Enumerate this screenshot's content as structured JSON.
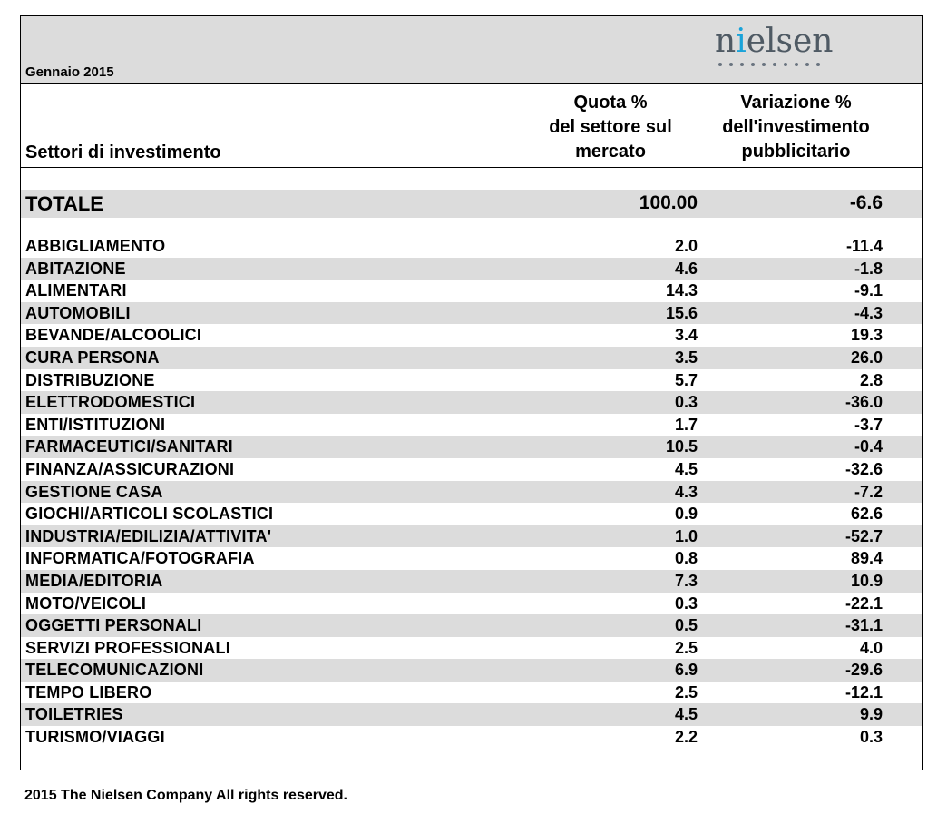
{
  "header": {
    "period": "Gennaio 2015",
    "logo_text_prefix": "n",
    "logo_text_i": "i",
    "logo_text_suffix": "elsen",
    "col_sector": "Settori di investimento",
    "col_share": [
      "Quota %",
      "del settore sul",
      "mercato"
    ],
    "col_var": [
      "Variazione %",
      "dell'investimento",
      "pubblicitario"
    ]
  },
  "total": {
    "label": "TOTALE",
    "share": "100.00",
    "variation": "-6.6"
  },
  "rows": [
    {
      "label": "ABBIGLIAMENTO",
      "share": "2.0",
      "variation": "-11.4"
    },
    {
      "label": "ABITAZIONE",
      "share": "4.6",
      "variation": "-1.8"
    },
    {
      "label": "ALIMENTARI",
      "share": "14.3",
      "variation": "-9.1"
    },
    {
      "label": "AUTOMOBILI",
      "share": "15.6",
      "variation": "-4.3"
    },
    {
      "label": "BEVANDE/ALCOOLICI",
      "share": "3.4",
      "variation": "19.3"
    },
    {
      "label": "CURA PERSONA",
      "share": "3.5",
      "variation": "26.0"
    },
    {
      "label": "DISTRIBUZIONE",
      "share": "5.7",
      "variation": "2.8"
    },
    {
      "label": "ELETTRODOMESTICI",
      "share": "0.3",
      "variation": "-36.0"
    },
    {
      "label": "ENTI/ISTITUZIONI",
      "share": "1.7",
      "variation": "-3.7"
    },
    {
      "label": "FARMACEUTICI/SANITARI",
      "share": "10.5",
      "variation": "-0.4"
    },
    {
      "label": "FINANZA/ASSICURAZIONI",
      "share": "4.5",
      "variation": "-32.6"
    },
    {
      "label": "GESTIONE CASA",
      "share": "4.3",
      "variation": "-7.2"
    },
    {
      "label": "GIOCHI/ARTICOLI SCOLASTICI",
      "share": "0.9",
      "variation": "62.6"
    },
    {
      "label": "INDUSTRIA/EDILIZIA/ATTIVITA'",
      "share": "1.0",
      "variation": "-52.7"
    },
    {
      "label": "INFORMATICA/FOTOGRAFIA",
      "share": "0.8",
      "variation": "89.4"
    },
    {
      "label": "MEDIA/EDITORIA",
      "share": "7.3",
      "variation": "10.9"
    },
    {
      "label": "MOTO/VEICOLI",
      "share": "0.3",
      "variation": "-22.1"
    },
    {
      "label": "OGGETTI PERSONALI",
      "share": "0.5",
      "variation": "-31.1"
    },
    {
      "label": "SERVIZI PROFESSIONALI",
      "share": "2.5",
      "variation": "4.0"
    },
    {
      "label": "TELECOMUNICAZIONI",
      "share": "6.9",
      "variation": "-29.6"
    },
    {
      "label": "TEMPO LIBERO",
      "share": "2.5",
      "variation": "-12.1"
    },
    {
      "label": "TOILETRIES",
      "share": "4.5",
      "variation": "9.9"
    },
    {
      "label": "TURISMO/VIAGGI",
      "share": "2.2",
      "variation": "0.3"
    }
  ],
  "footer": "2015 The Nielsen Company All rights reserved.",
  "colors": {
    "band": "#dcdcdc",
    "logo_text": "#4f5a64",
    "logo_accent": "#1aa3d9"
  }
}
